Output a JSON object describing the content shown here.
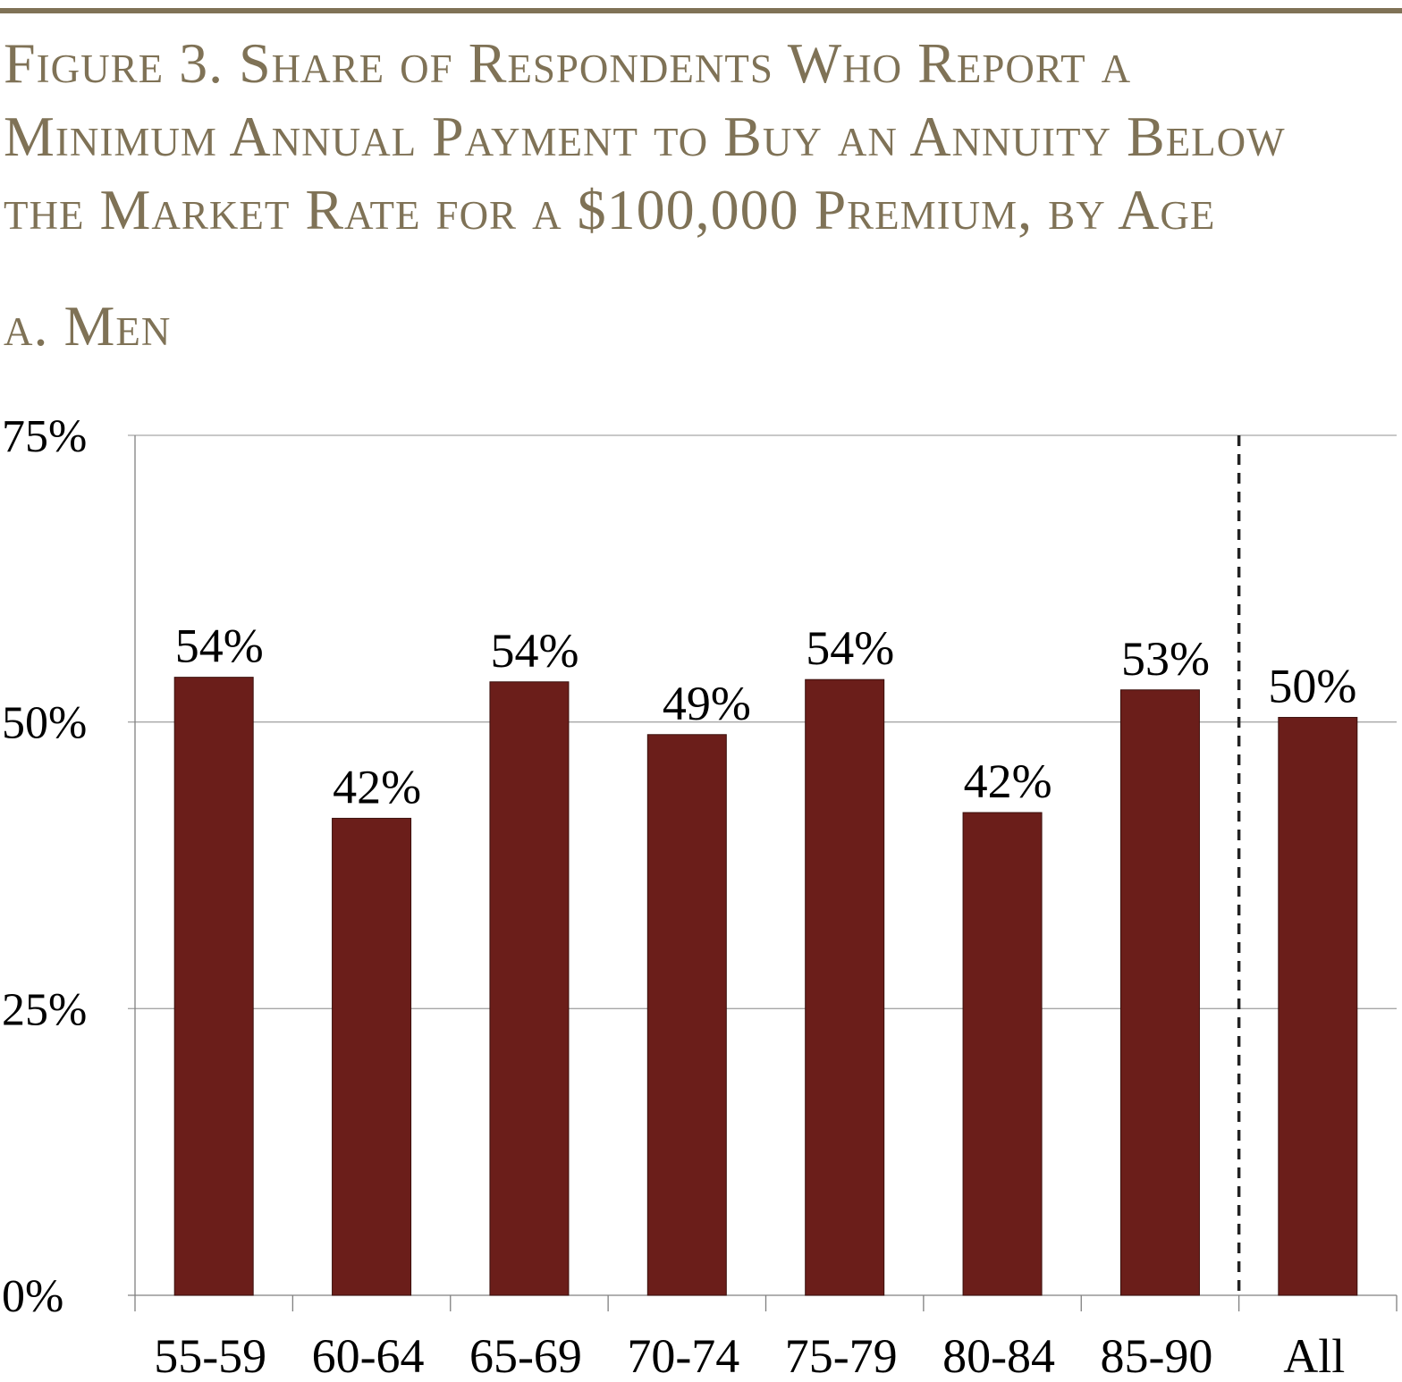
{
  "title_lines": [
    "Figure 3. Share of Respondents Who Report a",
    "Minimum Annual Payment to Buy an Annuity Below",
    "the Market Rate for a $100,000 Premium, by Age"
  ],
  "subtitle": "a. Men",
  "colors": {
    "accent": "#7f7256",
    "bar": "#6b1e1a",
    "grid": "#a6a6a6"
  },
  "chart_data": {
    "type": "bar",
    "title": "Figure 3. Share of Respondents Who Report a Minimum Annual Payment to Buy an Annuity Below the Market Rate for a $100,000 Premium, by Age",
    "subtitle": "a. Men",
    "categories": [
      "55-59",
      "60-64",
      "65-69",
      "70-74",
      "75-79",
      "80-84",
      "85-90",
      "All"
    ],
    "values": [
      54,
      42,
      54,
      49,
      54,
      42,
      53,
      50
    ],
    "plotted_values": [
      53.9,
      41.6,
      53.5,
      48.9,
      53.7,
      42.1,
      52.8,
      50.4
    ],
    "data_labels": [
      "54%",
      "42%",
      "54%",
      "49%",
      "54%",
      "42%",
      "53%",
      "50%"
    ],
    "ylim": [
      0,
      75
    ],
    "yticks": [
      0,
      25,
      50,
      75
    ],
    "ytick_labels": [
      "0%",
      "25%",
      "50%",
      "75%"
    ],
    "xlabel": "",
    "ylabel": "",
    "grid": true,
    "separator": "dashed line before All"
  }
}
